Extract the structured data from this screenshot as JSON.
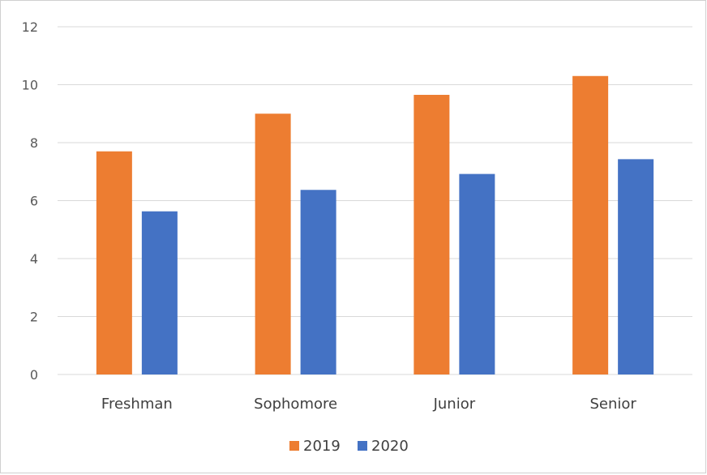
{
  "chart_data": {
    "type": "bar",
    "categories": [
      "Freshman",
      "Sophomore",
      "Junior",
      "Senior"
    ],
    "series": [
      {
        "name": "2019",
        "color": "#ed7d31",
        "values": [
          7.7,
          9.0,
          9.65,
          10.3
        ]
      },
      {
        "name": "2020",
        "color": "#4472c4",
        "values": [
          5.63,
          6.37,
          6.92,
          7.43
        ]
      }
    ],
    "yticks": [
      "0",
      "2",
      "4",
      "6",
      "8",
      "10",
      "12"
    ],
    "ylim": [
      0,
      12
    ],
    "grid": true,
    "legend_position": "bottom",
    "gridline_color": "#d9d9d9"
  }
}
